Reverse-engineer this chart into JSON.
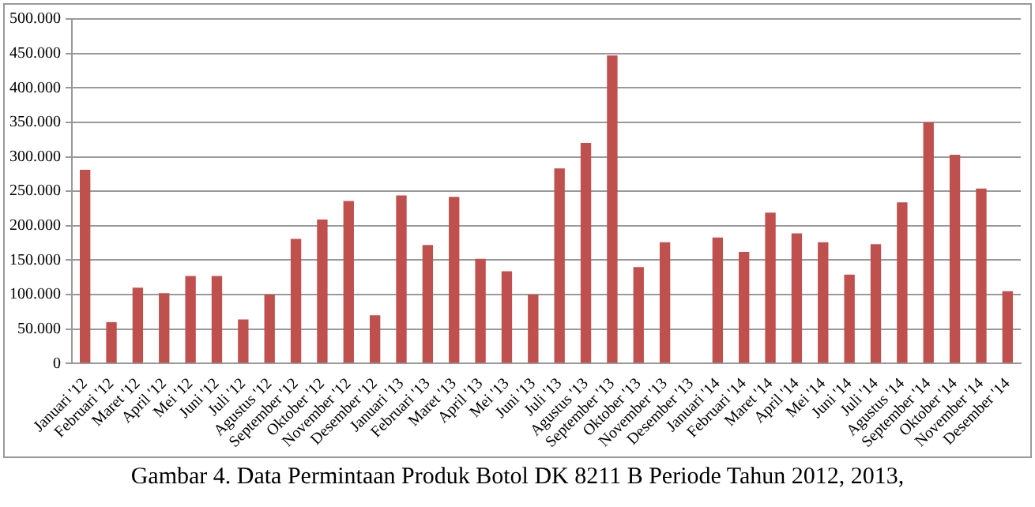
{
  "chart_data": {
    "type": "bar",
    "categories": [
      "Januari '12",
      "Februari '12",
      "Maret '12",
      "April '12",
      "Mei '12",
      "Juni '12",
      "Juli '12",
      "Agustus '12",
      "September '12",
      "Oktober '12",
      "November '12",
      "Desember '12",
      "Januari '13",
      "Februari '13",
      "Maret '13",
      "April '13",
      "Mei '13",
      "Juni '13",
      "Juli '13",
      "Agustus '13",
      "September '13",
      "Oktober '13",
      "November '13",
      "Desember '13",
      "Januari '14",
      "Februari '14",
      "Maret '14",
      "April '14",
      "Mei '14",
      "Juni '14",
      "Juli '14",
      "Agustus '14",
      "September '14",
      "Oktober '14",
      "November '14",
      "Desember '14"
    ],
    "values": [
      281000,
      60000,
      110000,
      102000,
      127000,
      127000,
      64000,
      100000,
      181000,
      209000,
      236000,
      70000,
      244000,
      172000,
      242000,
      152000,
      134000,
      100000,
      283000,
      320000,
      447000,
      140000,
      176000,
      0,
      183000,
      162000,
      219000,
      189000,
      176000,
      129000,
      173000,
      234000,
      350000,
      303000,
      254000,
      105000
    ],
    "color": "#c0504d",
    "ylim": [
      0,
      500000
    ],
    "yticks": [
      {
        "value": 0,
        "label": "0"
      },
      {
        "value": 50000,
        "label": "50.000"
      },
      {
        "value": 100000,
        "label": "100.000"
      },
      {
        "value": 150000,
        "label": "150.000"
      },
      {
        "value": 200000,
        "label": "200.000"
      },
      {
        "value": 250000,
        "label": "250.000"
      },
      {
        "value": 300000,
        "label": "300.000"
      },
      {
        "value": 350000,
        "label": "350.000"
      },
      {
        "value": 400000,
        "label": "400.000"
      },
      {
        "value": 450000,
        "label": "450.000"
      },
      {
        "value": 500000,
        "label": "500.000"
      }
    ],
    "grid": "y",
    "annotations": [
      "Gambar 4. Data Permintaan Produk Botol DK 8211 B Periode Tahun 2012, 2013,"
    ]
  }
}
